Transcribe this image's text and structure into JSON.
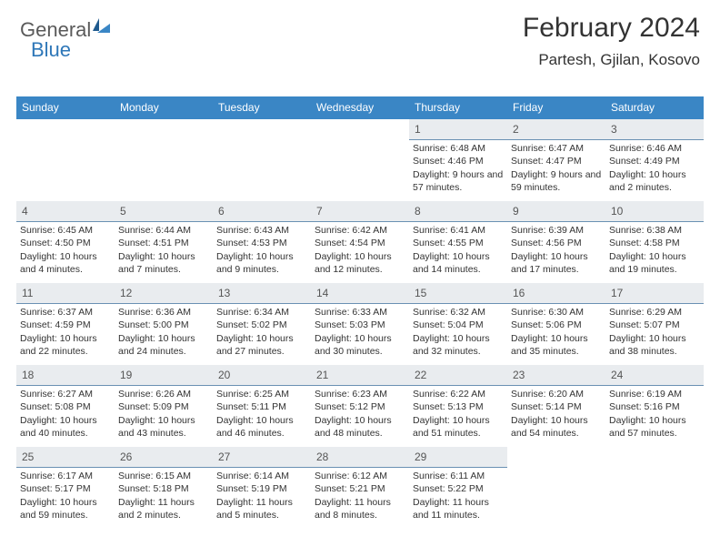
{
  "logo": {
    "part1": "General",
    "part2": "Blue"
  },
  "header": {
    "title": "February 2024",
    "location": "Partesh, Gjilan, Kosovo"
  },
  "dow": [
    "Sunday",
    "Monday",
    "Tuesday",
    "Wednesday",
    "Thursday",
    "Friday",
    "Saturday"
  ],
  "startOffset": 4,
  "daysInMonth": 29,
  "days": {
    "1": {
      "sr": "6:48 AM",
      "ss": "4:46 PM",
      "dl": "9 hours and 57 minutes."
    },
    "2": {
      "sr": "6:47 AM",
      "ss": "4:47 PM",
      "dl": "9 hours and 59 minutes."
    },
    "3": {
      "sr": "6:46 AM",
      "ss": "4:49 PM",
      "dl": "10 hours and 2 minutes."
    },
    "4": {
      "sr": "6:45 AM",
      "ss": "4:50 PM",
      "dl": "10 hours and 4 minutes."
    },
    "5": {
      "sr": "6:44 AM",
      "ss": "4:51 PM",
      "dl": "10 hours and 7 minutes."
    },
    "6": {
      "sr": "6:43 AM",
      "ss": "4:53 PM",
      "dl": "10 hours and 9 minutes."
    },
    "7": {
      "sr": "6:42 AM",
      "ss": "4:54 PM",
      "dl": "10 hours and 12 minutes."
    },
    "8": {
      "sr": "6:41 AM",
      "ss": "4:55 PM",
      "dl": "10 hours and 14 minutes."
    },
    "9": {
      "sr": "6:39 AM",
      "ss": "4:56 PM",
      "dl": "10 hours and 17 minutes."
    },
    "10": {
      "sr": "6:38 AM",
      "ss": "4:58 PM",
      "dl": "10 hours and 19 minutes."
    },
    "11": {
      "sr": "6:37 AM",
      "ss": "4:59 PM",
      "dl": "10 hours and 22 minutes."
    },
    "12": {
      "sr": "6:36 AM",
      "ss": "5:00 PM",
      "dl": "10 hours and 24 minutes."
    },
    "13": {
      "sr": "6:34 AM",
      "ss": "5:02 PM",
      "dl": "10 hours and 27 minutes."
    },
    "14": {
      "sr": "6:33 AM",
      "ss": "5:03 PM",
      "dl": "10 hours and 30 minutes."
    },
    "15": {
      "sr": "6:32 AM",
      "ss": "5:04 PM",
      "dl": "10 hours and 32 minutes."
    },
    "16": {
      "sr": "6:30 AM",
      "ss": "5:06 PM",
      "dl": "10 hours and 35 minutes."
    },
    "17": {
      "sr": "6:29 AM",
      "ss": "5:07 PM",
      "dl": "10 hours and 38 minutes."
    },
    "18": {
      "sr": "6:27 AM",
      "ss": "5:08 PM",
      "dl": "10 hours and 40 minutes."
    },
    "19": {
      "sr": "6:26 AM",
      "ss": "5:09 PM",
      "dl": "10 hours and 43 minutes."
    },
    "20": {
      "sr": "6:25 AM",
      "ss": "5:11 PM",
      "dl": "10 hours and 46 minutes."
    },
    "21": {
      "sr": "6:23 AM",
      "ss": "5:12 PM",
      "dl": "10 hours and 48 minutes."
    },
    "22": {
      "sr": "6:22 AM",
      "ss": "5:13 PM",
      "dl": "10 hours and 51 minutes."
    },
    "23": {
      "sr": "6:20 AM",
      "ss": "5:14 PM",
      "dl": "10 hours and 54 minutes."
    },
    "24": {
      "sr": "6:19 AM",
      "ss": "5:16 PM",
      "dl": "10 hours and 57 minutes."
    },
    "25": {
      "sr": "6:17 AM",
      "ss": "5:17 PM",
      "dl": "10 hours and 59 minutes."
    },
    "26": {
      "sr": "6:15 AM",
      "ss": "5:18 PM",
      "dl": "11 hours and 2 minutes."
    },
    "27": {
      "sr": "6:14 AM",
      "ss": "5:19 PM",
      "dl": "11 hours and 5 minutes."
    },
    "28": {
      "sr": "6:12 AM",
      "ss": "5:21 PM",
      "dl": "11 hours and 8 minutes."
    },
    "29": {
      "sr": "6:11 AM",
      "ss": "5:22 PM",
      "dl": "11 hours and 11 minutes."
    }
  },
  "labels": {
    "sunrise": "Sunrise: ",
    "sunset": "Sunset: ",
    "daylight": "Daylight: "
  },
  "style": {
    "header_bg": "#3a86c5",
    "header_fg": "#ffffff",
    "daynum_bg": "#e9ecef",
    "daynum_border": "#6a91b3",
    "page_bg": "#ffffff",
    "text": "#333333"
  }
}
